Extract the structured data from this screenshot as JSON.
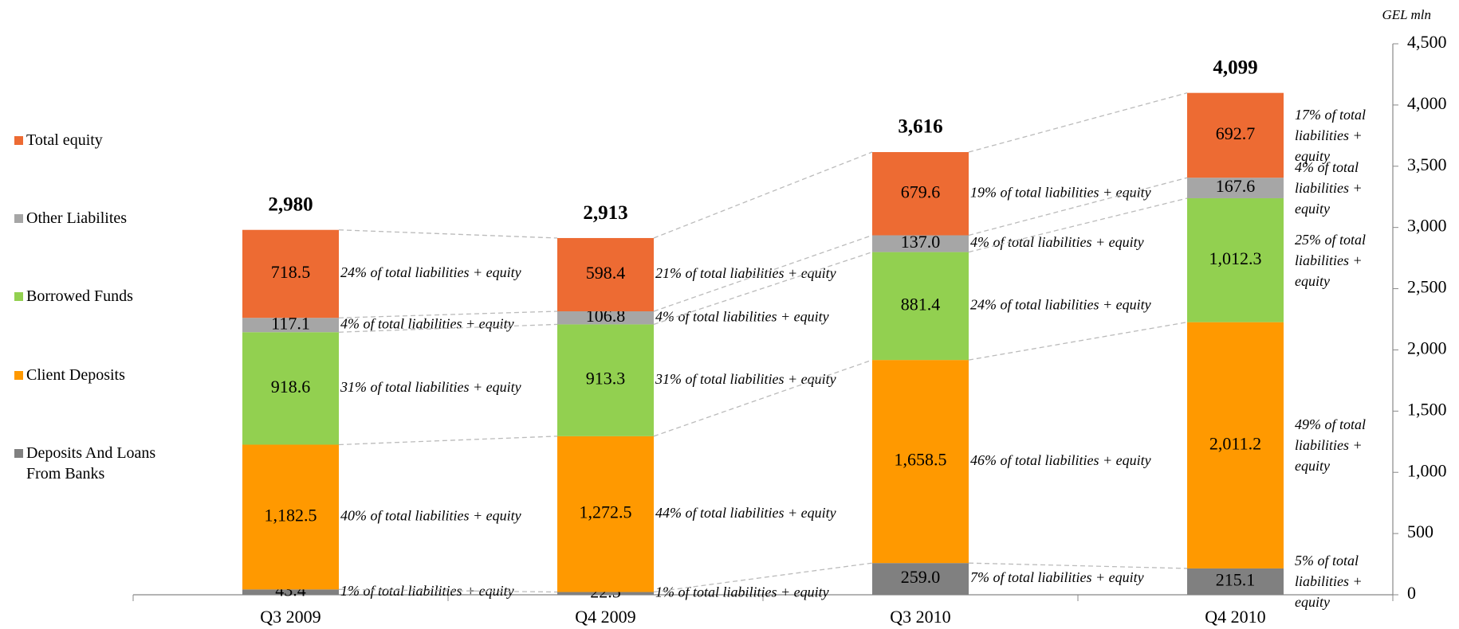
{
  "chart_data": {
    "type": "stacked_bar",
    "unit_label": "GEL mln",
    "categories": [
      "Q3 2009",
      "Q4 2009",
      "Q3 2010",
      "Q4 2010"
    ],
    "series": [
      {
        "name": "Deposits And Loans From Banks",
        "color": "#808080",
        "values": [
          43.4,
          22.5,
          259.0,
          215.1
        ],
        "value_labels": [
          "43.4",
          "22.5",
          "259.0",
          "215.1"
        ],
        "share_labels": [
          "1% of total liabilities +  equity",
          "1% of total liabilities +  equity",
          "7% of total liabilities +  equity",
          "5% of total liabilities + equity"
        ]
      },
      {
        "name": "Client Deposits",
        "color": "#FF9900",
        "values": [
          1182.5,
          1272.5,
          1658.5,
          2011.2
        ],
        "value_labels": [
          "1,182.5",
          "1,272.5",
          "1,658.5",
          "2,011.2"
        ],
        "share_labels": [
          "40% of total liabilities +  equity",
          "44% of total liabilities +  equity",
          "46% of total liabilities +  equity",
          "49% of total liabilities + equity"
        ]
      },
      {
        "name": "Borrowed Funds",
        "color": "#92D050",
        "values": [
          918.6,
          913.3,
          881.4,
          1012.3
        ],
        "value_labels": [
          "918.6",
          "913.3",
          "881.4",
          "1,012.3"
        ],
        "share_labels": [
          "31% of total liabilities + equity",
          "31% of total liabilities +  equity",
          "24% of total liabilities +  equity",
          "25% of total liabilities + equity"
        ]
      },
      {
        "name": "Other Liabilites",
        "color": "#A6A6A6",
        "values": [
          117.1,
          106.8,
          137.0,
          167.6
        ],
        "value_labels": [
          "117.1",
          "106.8",
          "137.0",
          "167.6"
        ],
        "share_labels": [
          "4% of total liabilities +  equity",
          "4% of total liabilities +  equity",
          "4% of total liabilities +  equity",
          "4% of total liabilities + equity"
        ]
      },
      {
        "name": "Total equity",
        "color": "#ED6B33",
        "values": [
          718.5,
          598.4,
          679.6,
          692.7
        ],
        "value_labels": [
          "718.5",
          "598.4",
          "679.6",
          "692.7"
        ],
        "share_labels": [
          "24% of total liabilities +  equity",
          "21% of total liabilities +  equity",
          "19% of total liabilities +  equity",
          "17% of total liabilities + equity"
        ]
      }
    ],
    "totals": [
      2980,
      2913,
      3616,
      4099
    ],
    "total_labels": [
      "2,980",
      "2,913",
      "3,616",
      "4,099"
    ],
    "ylim": [
      0,
      4500
    ],
    "yticks": [
      0,
      500,
      {
        "value": 1000,
        "label": "1,000"
      },
      {
        "value": 1500,
        "label": "1,500"
      },
      {
        "value": 2000,
        "label": "2,000"
      },
      {
        "value": 2500,
        "label": "2,500"
      },
      {
        "value": 3000,
        "label": "3,000"
      },
      {
        "value": 3500,
        "label": "3,500"
      },
      {
        "value": 4000,
        "label": "4,000"
      },
      {
        "value": 4500,
        "label": "4,500"
      }
    ],
    "legend": "left"
  }
}
